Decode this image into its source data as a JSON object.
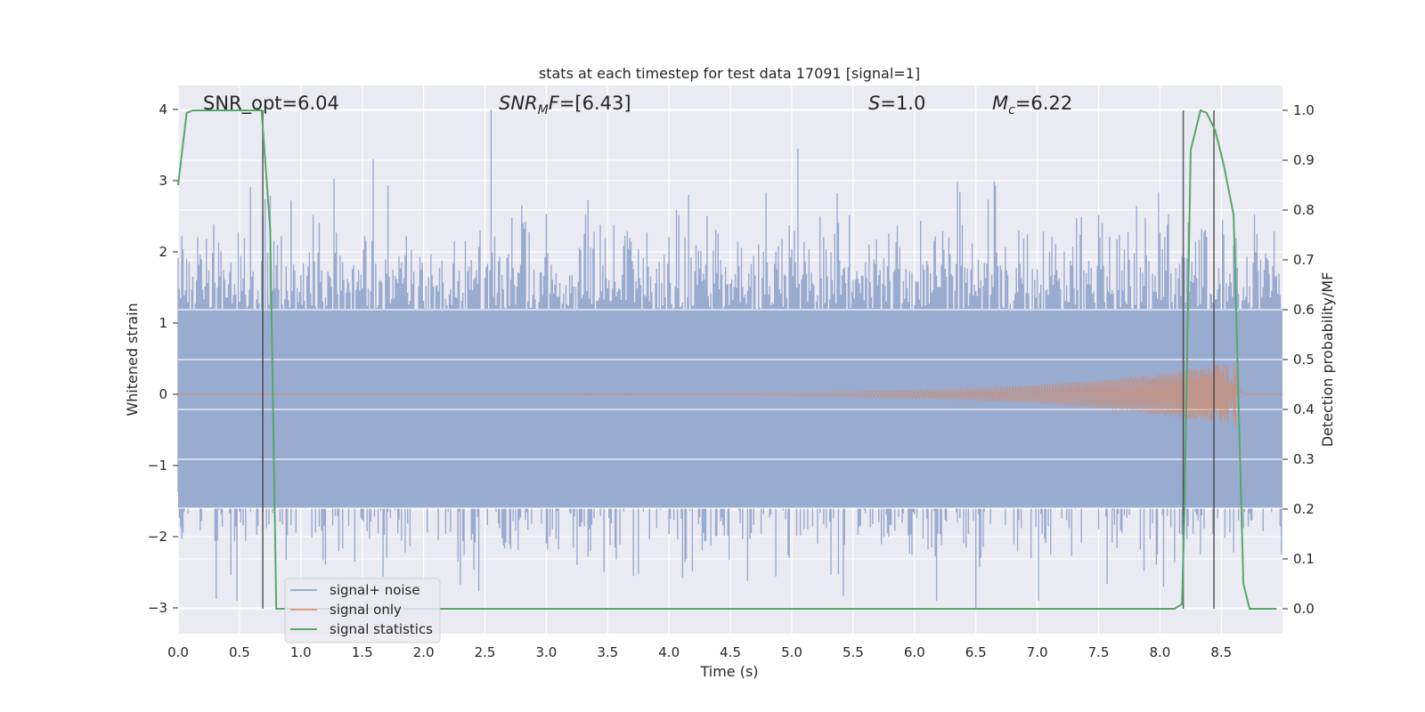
{
  "chart_data": {
    "type": "line",
    "title": "stats at each timestep for test data 17091 [signal=1]",
    "xlabel": "Time (s)",
    "ylabel_left": "Whitened strain",
    "ylabel_right": "Detection probability/MF",
    "xlim": [
      0.0,
      9.0
    ],
    "ylim_left": [
      -3.35,
      4.35
    ],
    "ylim_right": [
      -0.05,
      1.05
    ],
    "xticks": [
      "0.0",
      "0.5",
      "1.0",
      "1.5",
      "2.0",
      "2.5",
      "3.0",
      "3.5",
      "4.0",
      "4.5",
      "5.0",
      "5.5",
      "6.0",
      "6.5",
      "7.0",
      "7.5",
      "8.0",
      "8.5"
    ],
    "yticks_left": [
      "−3",
      "−2",
      "−1",
      "0",
      "1",
      "2",
      "3",
      "4"
    ],
    "yticks_right": [
      "0.0",
      "0.1",
      "0.2",
      "0.3",
      "0.4",
      "0.5",
      "0.6",
      "0.7",
      "0.8",
      "0.9",
      "1.0"
    ],
    "grid": true,
    "legend_position": "lower-left",
    "series": [
      {
        "name": "signal+ noise",
        "color": "#4c72b0",
        "axis": "left",
        "style": "dense noise, approx ±2.5 strain",
        "peak_values": [
          {
            "x": 2.55,
            "y": 4.0
          },
          {
            "x": 5.05,
            "y": 3.45
          },
          {
            "x": 6.5,
            "y": -3.0
          }
        ]
      },
      {
        "name": "signal only",
        "color": "#dd8452",
        "axis": "left",
        "style": "chirp growing to ±0.45 at 8.65 s, near zero before 4.0 s"
      },
      {
        "name": "signal statistics",
        "color": "#55a868",
        "axis": "right",
        "x": [
          0.0,
          0.07,
          0.12,
          0.3,
          0.5,
          0.68,
          0.75,
          0.8,
          0.85,
          2.0,
          4.0,
          6.0,
          8.0,
          8.12,
          8.18,
          8.2,
          8.25,
          8.33,
          8.38,
          8.45,
          8.52,
          8.6,
          8.68,
          8.73,
          8.8,
          8.9,
          8.95
        ],
        "y": [
          0.85,
          0.995,
          1.0,
          1.0,
          1.0,
          1.0,
          0.76,
          0.0,
          0.0,
          0.0,
          0.0,
          0.0,
          0.0,
          0.0,
          0.01,
          0.2,
          0.92,
          1.0,
          0.995,
          0.96,
          0.89,
          0.79,
          0.05,
          0.0,
          0.0,
          0.0,
          0.0
        ]
      }
    ],
    "vertical_lines_x": [
      0.69,
      8.19,
      8.44
    ],
    "annotations": {
      "snr_opt": "SNR_opt=6.04",
      "snr_mf_pre": "SNR",
      "snr_mf_sub": "M",
      "snr_mf_post": "F",
      "snr_mf_val": "=[6.43]",
      "s_var": "S",
      "s_val": "=1.0",
      "mc_var": "M",
      "mc_sub": "c",
      "mc_val": "=6.22"
    },
    "colors": {
      "background": "#eaeaf2",
      "grid": "#ffffff",
      "vline": "#333333"
    }
  }
}
